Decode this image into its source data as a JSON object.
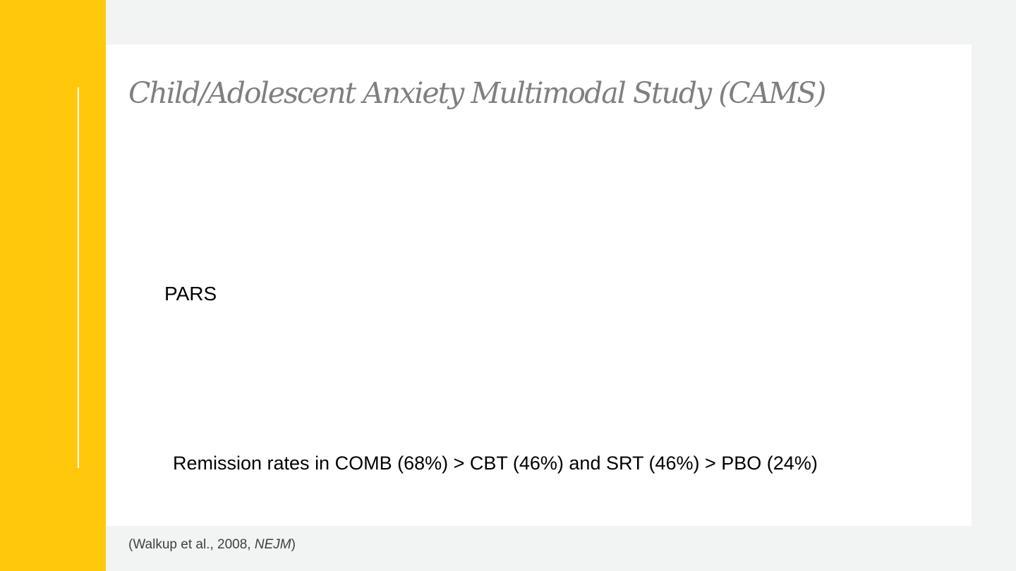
{
  "slide": {
    "title": "Child/Adolescent Anxiety Multimodal Study (CAMS)",
    "measure_label": "PARS",
    "remission_text": "Remission rates in COMB (68%) > CBT (46%) and SRT (46%) > PBO (24%)",
    "citation": {
      "open_paren": "(",
      "authors_year": "Walkup et al., 2008, ",
      "journal": "NEJM",
      "close_paren": ")"
    }
  },
  "colors": {
    "accent_yellow": "#ffc80a",
    "background_gray": "#f2f3f3",
    "panel_white": "#ffffff",
    "title_gray": "#7f7f7f"
  }
}
